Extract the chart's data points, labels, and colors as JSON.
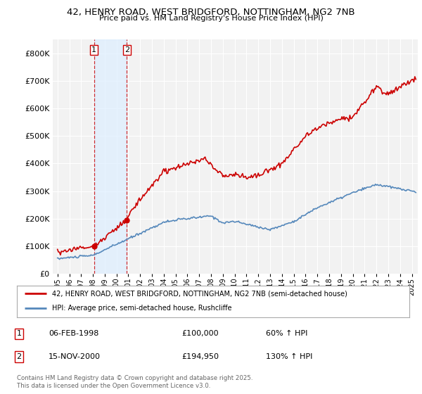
{
  "title_line1": "42, HENRY ROAD, WEST BRIDGFORD, NOTTINGHAM, NG2 7NB",
  "title_line2": "Price paid vs. HM Land Registry's House Price Index (HPI)",
  "background_color": "#ffffff",
  "plot_bg_color": "#f2f2f2",
  "grid_color": "#ffffff",
  "line1_color": "#cc0000",
  "line2_color": "#5588bb",
  "annotation_fill": "#ddeeff",
  "legend_line1": "42, HENRY ROAD, WEST BRIDGFORD, NOTTINGHAM, NG2 7NB (semi-detached house)",
  "legend_line2": "HPI: Average price, semi-detached house, Rushcliffe",
  "footer": "Contains HM Land Registry data © Crown copyright and database right 2025.\nThis data is licensed under the Open Government Licence v3.0.",
  "ylim": [
    0,
    850000
  ],
  "yticks": [
    0,
    100000,
    200000,
    300000,
    400000,
    500000,
    600000,
    700000,
    800000
  ],
  "xlim_start": 1994.6,
  "xlim_end": 2025.5,
  "purchase1_x": 1998.09,
  "purchase1_y": 100000,
  "purchase2_x": 2000.87,
  "purchase2_y": 194950,
  "p1_date": "06-FEB-1998",
  "p1_price": "£100,000",
  "p1_hpi": "60% ↑ HPI",
  "p2_date": "15-NOV-2000",
  "p2_price": "£194,950",
  "p2_hpi": "130% ↑ HPI"
}
